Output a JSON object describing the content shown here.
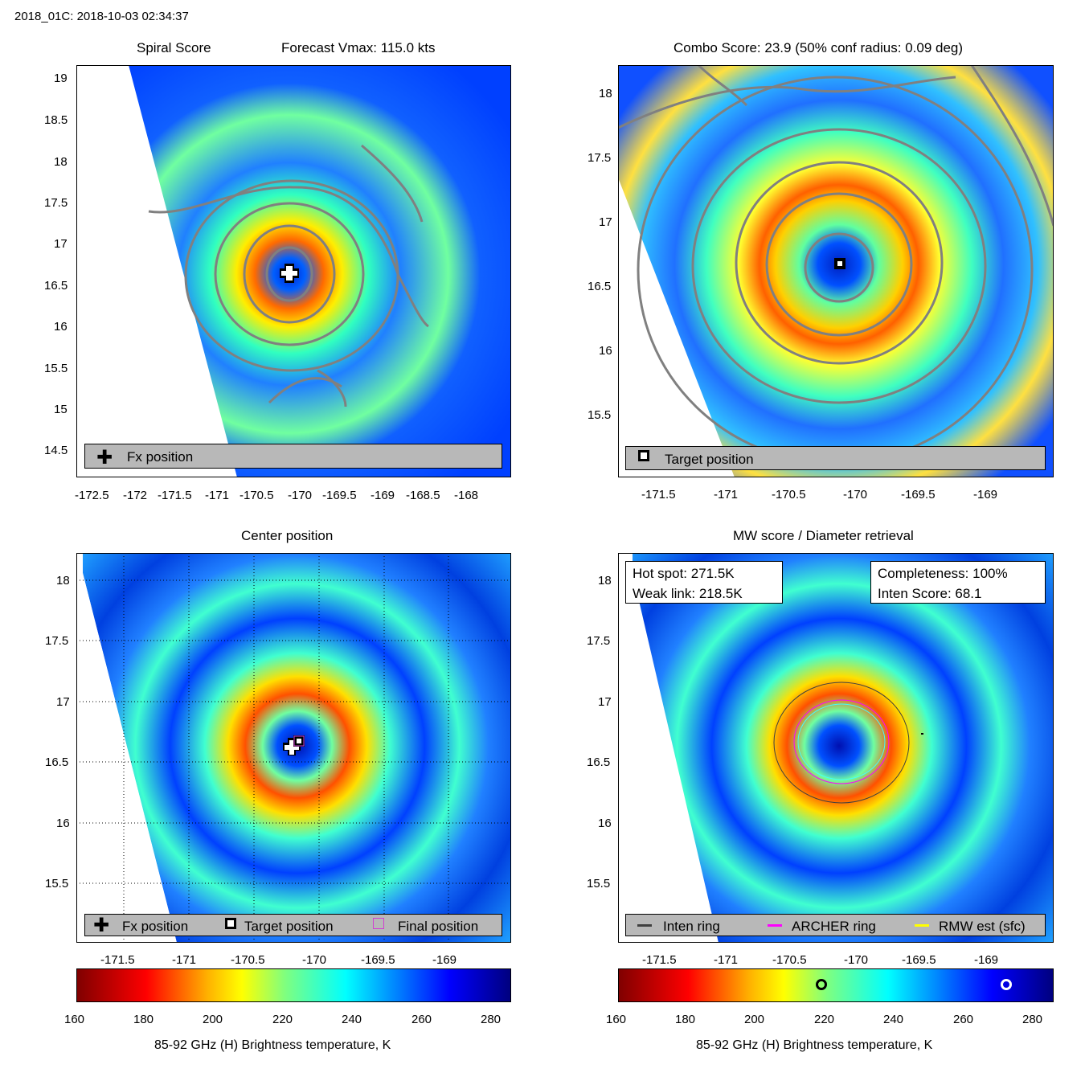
{
  "header": {
    "title": "2018_01C: 2018-10-03 02:34:37"
  },
  "panels": {
    "spiral": {
      "title_left": "Spiral Score",
      "title_right": "Forecast Vmax: 115.0 kts",
      "legend": "Fx position"
    },
    "combo": {
      "title": "Combo Score: 23.9  (50% conf radius: 0.09 deg)",
      "legend": "Target position"
    },
    "center": {
      "title": "Center position",
      "legend_fx": "Fx position",
      "legend_target": "Target position",
      "legend_final": "Final position"
    },
    "mw": {
      "title": "MW score / Diameter retrieval",
      "hot_spot": "Hot spot: 271.5K",
      "weak_link": "Weak link: 218.5K",
      "completeness": "Completeness: 100%",
      "inten_score": "Inten Score: 68.1",
      "legend_inten": "Inten ring",
      "legend_archer": "ARCHER ring",
      "legend_rmw": "RMW est (sfc)"
    }
  },
  "colorbar": {
    "label": "85-92 GHz (H) Brightness temperature, K",
    "ticks": [
      "160",
      "180",
      "200",
      "220",
      "240",
      "260",
      "280"
    ]
  },
  "colors": {
    "inten_ring": "#404040",
    "archer_ring": "#ff00ff",
    "rmw_ring": "#ffff00",
    "contour": "#808080"
  },
  "chart_data": [
    {
      "type": "heatmap",
      "panel": "Spiral Score",
      "x_ticks": [
        "-172.5",
        "-172",
        "-171.5",
        "-171",
        "-170.5",
        "-170",
        "-169.5",
        "-169",
        "-168.5",
        "-168"
      ],
      "y_ticks": [
        "19",
        "18.5",
        "18",
        "17.5",
        "17",
        "16.5",
        "16",
        "15.5",
        "15",
        "14.5"
      ],
      "fx_position": [
        -170.15,
        16.62
      ]
    },
    {
      "type": "heatmap",
      "panel": "Combo Score",
      "x_ticks": [
        "-171.5",
        "-171",
        "-170.5",
        "-170",
        "-169.5",
        "-169"
      ],
      "y_ticks": [
        "18",
        "17.5",
        "17",
        "16.5",
        "16",
        "15.5"
      ],
      "target_position": [
        -170.13,
        16.68
      ]
    },
    {
      "type": "heatmap",
      "panel": "Center position",
      "x_ticks": [
        "-171.5",
        "-171",
        "-170.5",
        "-170",
        "-169.5",
        "-169"
      ],
      "y_ticks": [
        "18",
        "17.5",
        "17",
        "16.5",
        "16",
        "15.5"
      ]
    },
    {
      "type": "heatmap",
      "panel": "MW score",
      "x_ticks": [
        "-171.5",
        "-171",
        "-170.5",
        "-170",
        "-169.5",
        "-169"
      ],
      "y_ticks": [
        "18",
        "17.5",
        "17",
        "16.5",
        "16",
        "15.5"
      ],
      "colorbar_range": [
        160,
        285
      ],
      "hot_spot_K": 271.5,
      "weak_link_K": 218.5
    }
  ]
}
